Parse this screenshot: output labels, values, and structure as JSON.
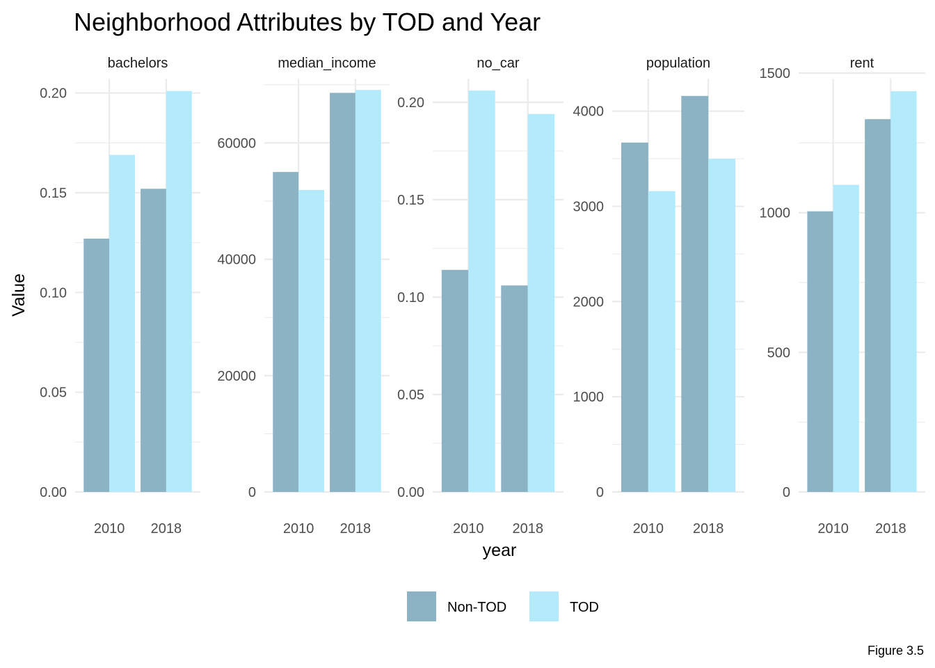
{
  "chart_data": {
    "type": "bar",
    "title": "Neighborhood Attributes by TOD and Year",
    "xlabel": "year",
    "ylabel": "Value",
    "caption": "Figure 3.5",
    "categories": [
      "2010",
      "2018"
    ],
    "legend": {
      "position": "bottom",
      "entries": [
        {
          "name": "Non-TOD",
          "color": "#8cb3c4"
        },
        {
          "name": "TOD",
          "color": "#b3ebfd"
        }
      ]
    },
    "grid": true,
    "facets": [
      {
        "name": "bachelors",
        "ylim": [
          0,
          0.21
        ],
        "yticks": [
          0,
          0.05,
          0.1,
          0.15,
          0.2
        ],
        "ytick_labels": [
          "0.00",
          "0.05",
          "0.10",
          "0.15",
          "0.20"
        ],
        "series": [
          {
            "name": "Non-TOD",
            "values": [
              0.127,
              0.152
            ]
          },
          {
            "name": "TOD",
            "values": [
              0.169,
              0.201
            ]
          }
        ]
      },
      {
        "name": "median_income",
        "ylim": [
          0,
          72000
        ],
        "yticks": [
          0,
          20000,
          40000,
          60000
        ],
        "ytick_labels": [
          "0",
          "20000",
          "40000",
          "60000"
        ],
        "series": [
          {
            "name": "Non-TOD",
            "values": [
              55000,
              68600
            ]
          },
          {
            "name": "TOD",
            "values": [
              51900,
              69100
            ]
          }
        ]
      },
      {
        "name": "no_car",
        "ylim": [
          0,
          0.215
        ],
        "yticks": [
          0,
          0.05,
          0.1,
          0.15,
          0.2
        ],
        "ytick_labels": [
          "0.00",
          "0.05",
          "0.10",
          "0.15",
          "0.20"
        ],
        "series": [
          {
            "name": "Non-TOD",
            "values": [
              0.114,
              0.106
            ]
          },
          {
            "name": "TOD",
            "values": [
              0.206,
              0.194
            ]
          }
        ]
      },
      {
        "name": "population",
        "ylim": [
          0,
          4400
        ],
        "yticks": [
          0,
          1000,
          2000,
          3000,
          4000
        ],
        "ytick_labels": [
          "0",
          "1000",
          "2000",
          "3000",
          "4000"
        ],
        "series": [
          {
            "name": "Non-TOD",
            "values": [
              3670,
              4160
            ]
          },
          {
            "name": "TOD",
            "values": [
              3160,
              3500
            ]
          }
        ]
      },
      {
        "name": "rent",
        "ylim": [
          0,
          1500
        ],
        "yticks": [
          0,
          500,
          1000,
          1500
        ],
        "ytick_labels": [
          "0",
          "500",
          "1000",
          "1500"
        ],
        "series": [
          {
            "name": "Non-TOD",
            "values": [
              1005,
              1335
            ]
          },
          {
            "name": "TOD",
            "values": [
              1100,
              1435
            ]
          }
        ]
      }
    ]
  }
}
